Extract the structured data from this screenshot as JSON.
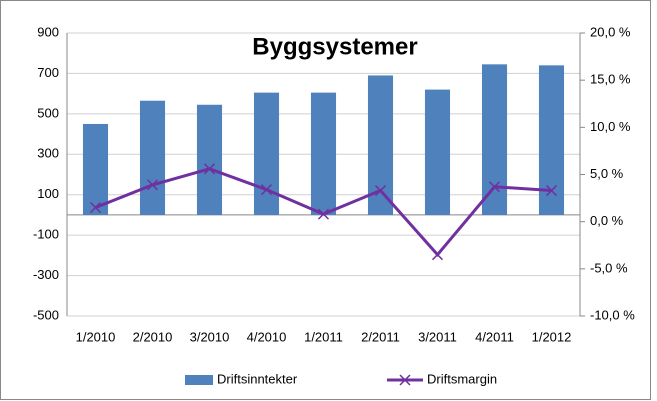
{
  "chart_data": {
    "type": "combo",
    "title": "Byggsystemer",
    "categories": [
      "1/2010",
      "2/2010",
      "3/2010",
      "4/2010",
      "1/2011",
      "2/2011",
      "3/2011",
      "4/2011",
      "1/2012"
    ],
    "series": [
      {
        "name": "Driftsinntekter",
        "type": "bar",
        "color": "#4f81bd",
        "axis": "y",
        "values": [
          450,
          565,
          545,
          605,
          605,
          690,
          620,
          745,
          740
        ]
      },
      {
        "name": "Driftsmargin",
        "type": "line",
        "color": "#7030a0",
        "axis": "y2",
        "values": [
          1.5,
          3.9,
          5.6,
          3.4,
          0.8,
          3.3,
          -3.5,
          3.7,
          3.3
        ]
      }
    ],
    "ylim": [
      -500,
      900
    ],
    "yticks": [
      900,
      700,
      500,
      300,
      100,
      -100,
      -300,
      -500
    ],
    "y2lim": [
      -10,
      20
    ],
    "y2ticks": [
      {
        "value": 20,
        "label": "20,0 %"
      },
      {
        "value": 15,
        "label": "15,0 %"
      },
      {
        "value": 10,
        "label": "10,0 %"
      },
      {
        "value": 5,
        "label": "5,0 %"
      },
      {
        "value": 0,
        "label": "0,0 %"
      },
      {
        "value": -5,
        "label": "-5,0 %"
      },
      {
        "value": -10,
        "label": "-10,0 %"
      }
    ],
    "grid": true,
    "legend": "bottom"
  }
}
